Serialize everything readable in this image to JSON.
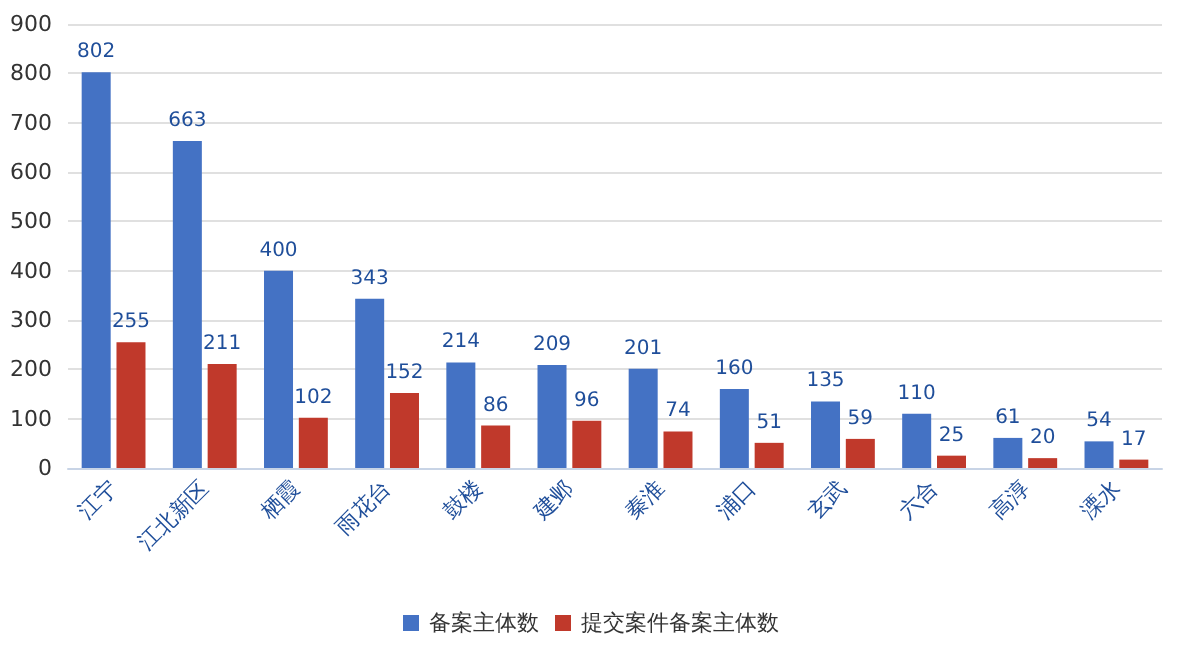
{
  "chart_data": {
    "type": "bar",
    "categories": [
      "江宁",
      "江北新区",
      "栖霞",
      "雨花台",
      "鼓楼",
      "建邺",
      "秦淮",
      "浦口",
      "玄武",
      "六合",
      "高淳",
      "溧水"
    ],
    "series": [
      {
        "name": "备案主体数",
        "color": "#4472c4",
        "values": [
          802,
          663,
          400,
          343,
          214,
          209,
          201,
          160,
          135,
          110,
          61,
          54
        ]
      },
      {
        "name": "提交案件备案主体数",
        "color": "#c0392b",
        "values": [
          255,
          211,
          102,
          152,
          86,
          96,
          74,
          51,
          59,
          25,
          20,
          17
        ]
      }
    ],
    "ylim": [
      0,
      900
    ],
    "yticks": [
      0,
      100,
      200,
      300,
      400,
      500,
      600,
      700,
      800,
      900
    ],
    "grid": "y",
    "legend": "bottom",
    "data_labels": true
  }
}
